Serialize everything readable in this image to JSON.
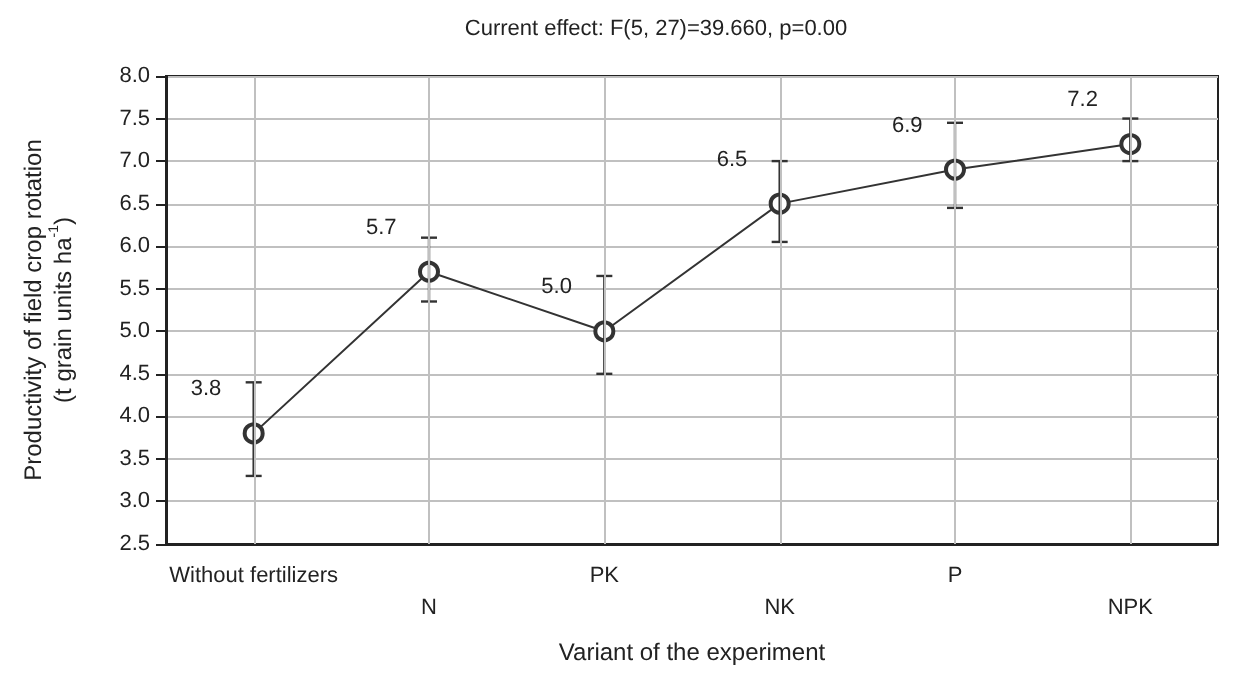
{
  "chart_data": {
    "type": "line",
    "title": "Current effect: F(5, 27)=39.660, p=0.00",
    "xlabel": "Variant of the experiment",
    "ylabel": "Productivity of field crop rotation\n(t grain units ha$^{-1}$)",
    "categories": [
      "Without fertilizers",
      "N",
      "PK",
      "NK",
      "P",
      "NPK"
    ],
    "series": [
      {
        "color": "#333333",
        "values": [
          3.8,
          5.7,
          5.0,
          6.5,
          6.9,
          7.2
        ],
        "value_labels": [
          "3.8",
          "5.7",
          "5.0",
          "6.5",
          "6.9",
          "7.2"
        ],
        "errors": [
          [
            3.3,
            4.4
          ],
          [
            5.35,
            6.1
          ],
          [
            4.5,
            5.65
          ],
          [
            6.05,
            7.0
          ],
          [
            6.45,
            7.45
          ],
          [
            7.0,
            7.5
          ]
        ]
      }
    ],
    "marker": "circle",
    "line_style": "solid",
    "grid": true,
    "ylim": [
      2.5,
      8
    ],
    "yticks": [
      {
        "value": 2.5,
        "label": "2.5"
      },
      {
        "value": 3,
        "label": "3.0"
      },
      {
        "value": 3.5,
        "label": "3.5"
      },
      {
        "value": 4,
        "label": "4.0"
      },
      {
        "value": 4.5,
        "label": "4.5"
      },
      {
        "value": 5,
        "label": "5.0"
      },
      {
        "value": 5.5,
        "label": "5.5"
      },
      {
        "value": 6,
        "label": "6.0"
      },
      {
        "value": 6.5,
        "label": "6.5"
      },
      {
        "value": 7,
        "label": "7.0"
      },
      {
        "value": 7.5,
        "label": "7.5"
      },
      {
        "value": 8,
        "label": "8.0"
      }
    ]
  }
}
